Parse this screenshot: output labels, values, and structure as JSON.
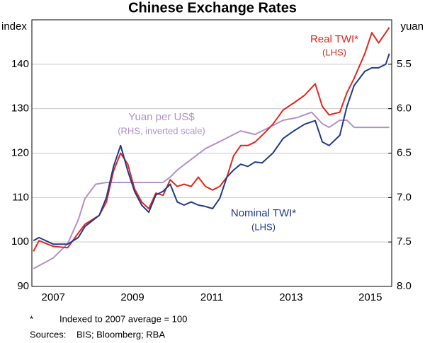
{
  "chart_data": {
    "type": "line",
    "title": "Chinese Exchange Rates",
    "ylabel": "index",
    "y2label": "yuan",
    "xlim": [
      2006.96,
      2016.04
    ],
    "xticks": [
      {
        "value": 2007.5,
        "label": "2007"
      },
      {
        "value": 2009.5,
        "label": "2009"
      },
      {
        "value": 2011.5,
        "label": "2011"
      },
      {
        "value": 2013.5,
        "label": "2013"
      },
      {
        "value": 2015.5,
        "label": "2015"
      }
    ],
    "ylim": [
      90,
      150
    ],
    "yticks": [
      90,
      100,
      110,
      120,
      130,
      140
    ],
    "y2lim": [
      8.0,
      5.0
    ],
    "y2ticks": [
      5.5,
      {
        "value": 6.0,
        "label": "6.0"
      },
      6.5,
      {
        "value": 7.0,
        "label": "7.0"
      },
      7.5,
      {
        "value": 8.0,
        "label": "8.0"
      }
    ],
    "grid": true,
    "series": [
      {
        "name": "Real TWI*",
        "color": "#e3261c",
        "axis": "y",
        "x": [
          2007.0,
          2007.14,
          2007.5,
          2007.86,
          2008.13,
          2008.3,
          2008.66,
          2008.84,
          2009.02,
          2009.2,
          2009.38,
          2009.55,
          2009.73,
          2009.91,
          2010.09,
          2010.27,
          2010.45,
          2010.63,
          2010.8,
          2010.98,
          2011.16,
          2011.34,
          2011.52,
          2011.7,
          2011.88,
          2012.05,
          2012.23,
          2012.41,
          2012.59,
          2012.77,
          2013.04,
          2013.3,
          2013.57,
          2013.84,
          2014.11,
          2014.29,
          2014.46,
          2014.73,
          2014.91,
          2015.09,
          2015.36,
          2015.54,
          2015.71,
          2015.89,
          2015.98
        ],
        "values": [
          97.9,
          100.3,
          99,
          98.7,
          102,
          104,
          106,
          109,
          116,
          120,
          117.5,
          112,
          109,
          107.5,
          111,
          110.5,
          114,
          112.5,
          113,
          112.5,
          114.6,
          112.5,
          111.7,
          112.5,
          114.6,
          119.4,
          121.7,
          121.7,
          122.5,
          124,
          126.5,
          129.7,
          131.3,
          133,
          135.6,
          130.5,
          128.6,
          129.2,
          133.6,
          136.8,
          142.4,
          147.1,
          144.8,
          147.1,
          148.3
        ]
      },
      {
        "name": "Nominal TWI*",
        "color": "#1f3a8f",
        "axis": "y",
        "x": [
          2007.0,
          2007.14,
          2007.5,
          2007.86,
          2008.13,
          2008.3,
          2008.66,
          2008.84,
          2009.02,
          2009.2,
          2009.38,
          2009.55,
          2009.73,
          2009.91,
          2010.09,
          2010.27,
          2010.45,
          2010.63,
          2010.8,
          2010.98,
          2011.16,
          2011.34,
          2011.52,
          2011.7,
          2011.88,
          2012.05,
          2012.23,
          2012.41,
          2012.59,
          2012.77,
          2013.04,
          2013.3,
          2013.57,
          2013.84,
          2014.11,
          2014.29,
          2014.46,
          2014.73,
          2014.91,
          2015.09,
          2015.36,
          2015.54,
          2015.71,
          2015.89,
          2015.98
        ],
        "values": [
          100.3,
          101,
          99.5,
          99.5,
          101,
          103.5,
          106,
          110,
          117,
          121.7,
          116,
          111.4,
          108.3,
          106.7,
          110.6,
          111.4,
          113,
          109,
          108.3,
          109,
          108.3,
          108,
          107.5,
          109.8,
          114.6,
          116.2,
          117.5,
          117,
          118,
          117.8,
          120,
          123.3,
          125,
          126.5,
          127.3,
          122.5,
          121.7,
          124,
          130.5,
          135.2,
          138.4,
          139.2,
          139.2,
          140,
          142.4
        ]
      },
      {
        "name": "Yuan per US$",
        "color": "#b190cc",
        "axis": "y2",
        "x": [
          2007.0,
          2007.5,
          2007.86,
          2008.13,
          2008.3,
          2008.57,
          2008.84,
          2009.29,
          2009.73,
          2010.27,
          2010.45,
          2010.63,
          2010.98,
          2011.34,
          2011.7,
          2011.88,
          2012.23,
          2012.59,
          2012.95,
          2013.3,
          2013.66,
          2014.02,
          2014.29,
          2014.46,
          2014.73,
          2014.91,
          2015.09,
          2015.36,
          2015.71,
          2015.98
        ],
        "values": [
          7.8,
          7.68,
          7.52,
          7.25,
          7.01,
          6.85,
          6.83,
          6.83,
          6.83,
          6.83,
          6.77,
          6.69,
          6.57,
          6.45,
          6.37,
          6.33,
          6.25,
          6.29,
          6.21,
          6.13,
          6.1,
          6.04,
          6.17,
          6.21,
          6.13,
          6.13,
          6.21,
          6.21,
          6.21,
          6.21
        ]
      }
    ],
    "annotations": [
      "Real TWI*",
      "(LHS)",
      "Yuan per US$",
      "(RHS, inverted scale)",
      "Nominal TWI*",
      "(LHS)"
    ],
    "notes": [
      "*",
      "Indexed to 2007 average = 100",
      "Sources:",
      "BIS; Bloomberg; RBA"
    ]
  }
}
